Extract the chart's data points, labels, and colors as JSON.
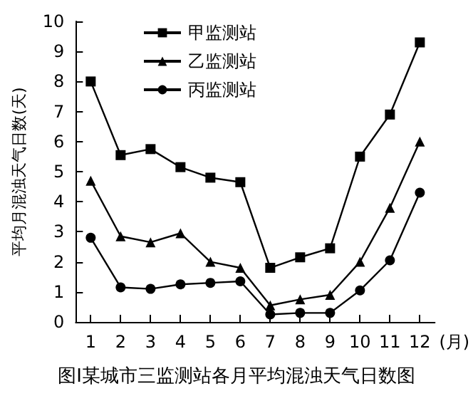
{
  "chart_data": {
    "type": "line",
    "title": "图Ⅰ某城市三监测站各月平均混浊天气日数图",
    "ylabel": "平均月混浊天气日数(天)",
    "xlabel": "(月)",
    "categories": [
      "1",
      "2",
      "3",
      "4",
      "5",
      "6",
      "7",
      "8",
      "9",
      "10",
      "11",
      "12"
    ],
    "series": [
      {
        "name": "甲监测站",
        "color": "#000000",
        "marker": "square",
        "values": [
          8.0,
          5.55,
          5.75,
          5.15,
          4.8,
          4.65,
          1.8,
          2.15,
          2.45,
          5.5,
          6.9,
          9.3
        ]
      },
      {
        "name": "乙监测站",
        "color": "#000000",
        "marker": "triangle",
        "values": [
          4.7,
          2.85,
          2.65,
          2.95,
          2.0,
          1.8,
          0.55,
          0.75,
          0.9,
          2.0,
          3.8,
          6.0
        ]
      },
      {
        "name": "丙监测站",
        "color": "#000000",
        "marker": "circle",
        "values": [
          2.8,
          1.15,
          1.1,
          1.25,
          1.3,
          1.35,
          0.25,
          0.3,
          0.3,
          1.05,
          2.05,
          4.3
        ]
      }
    ],
    "ylim": [
      0,
      10
    ],
    "yticks": [
      0,
      1,
      2,
      3,
      4,
      5,
      6,
      7,
      8,
      9,
      10
    ],
    "grid": false,
    "legend": "top left",
    "line_style": "solid"
  }
}
